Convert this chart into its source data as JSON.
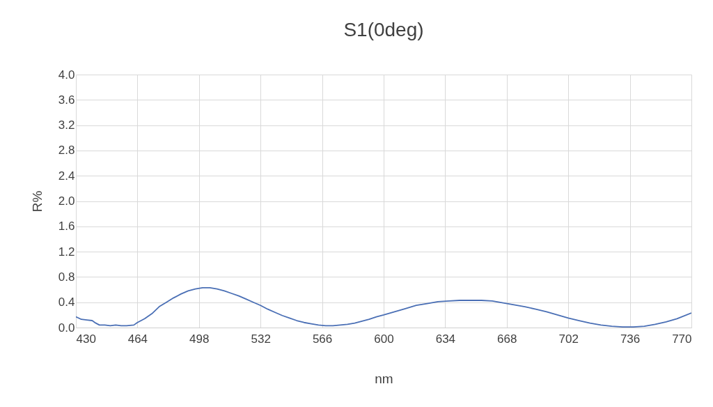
{
  "chart_data": {
    "type": "line",
    "title": "S1(0deg)",
    "xlabel": "nm",
    "ylabel": "R%",
    "x": [
      430,
      433,
      436,
      439,
      441,
      443,
      446,
      449,
      452,
      455,
      458,
      462,
      464,
      468,
      472,
      476,
      480,
      484,
      488,
      492,
      496,
      500,
      504,
      508,
      512,
      516,
      520,
      524,
      528,
      532,
      536,
      540,
      544,
      548,
      552,
      556,
      560,
      564,
      568,
      572,
      576,
      580,
      584,
      588,
      592,
      596,
      600,
      606,
      612,
      618,
      624,
      630,
      636,
      642,
      648,
      654,
      660,
      666,
      672,
      678,
      684,
      690,
      696,
      702,
      708,
      714,
      720,
      726,
      732,
      738,
      744,
      750,
      756,
      762,
      770
    ],
    "series": [
      {
        "color": "#4a6fb5",
        "values": [
          0.17,
          0.13,
          0.12,
          0.11,
          0.07,
          0.04,
          0.04,
          0.03,
          0.04,
          0.03,
          0.03,
          0.04,
          0.08,
          0.14,
          0.22,
          0.33,
          0.4,
          0.47,
          0.53,
          0.58,
          0.61,
          0.63,
          0.63,
          0.61,
          0.58,
          0.54,
          0.5,
          0.45,
          0.4,
          0.35,
          0.29,
          0.24,
          0.19,
          0.15,
          0.11,
          0.08,
          0.06,
          0.04,
          0.03,
          0.03,
          0.04,
          0.05,
          0.07,
          0.1,
          0.13,
          0.17,
          0.2,
          0.25,
          0.3,
          0.35,
          0.38,
          0.41,
          0.42,
          0.43,
          0.43,
          0.43,
          0.42,
          0.39,
          0.36,
          0.33,
          0.29,
          0.25,
          0.2,
          0.15,
          0.11,
          0.07,
          0.04,
          0.02,
          0.01,
          0.01,
          0.02,
          0.05,
          0.09,
          0.14,
          0.23
        ]
      }
    ],
    "xlim": [
      430,
      770
    ],
    "xticks": [
      430,
      464,
      498,
      532,
      566,
      600,
      634,
      668,
      702,
      736,
      770
    ],
    "ylim": [
      0,
      4
    ],
    "yticks": [
      {
        "value": 0,
        "label": "0.0"
      },
      {
        "value": 0.4,
        "label": "0.4"
      },
      {
        "value": 0.8,
        "label": "0.8"
      },
      {
        "value": 1.2,
        "label": "1.2"
      },
      {
        "value": 1.6,
        "label": "1.6"
      },
      {
        "value": 2,
        "label": "2.0"
      },
      {
        "value": 2.4,
        "label": "2.4"
      },
      {
        "value": 2.8,
        "label": "2.8"
      },
      {
        "value": 3.2,
        "label": "3.2"
      },
      {
        "value": 3.6,
        "label": "3.6"
      },
      {
        "value": 4,
        "label": "4.0"
      }
    ],
    "grid": true,
    "marker": "none",
    "line_style": "solid"
  }
}
